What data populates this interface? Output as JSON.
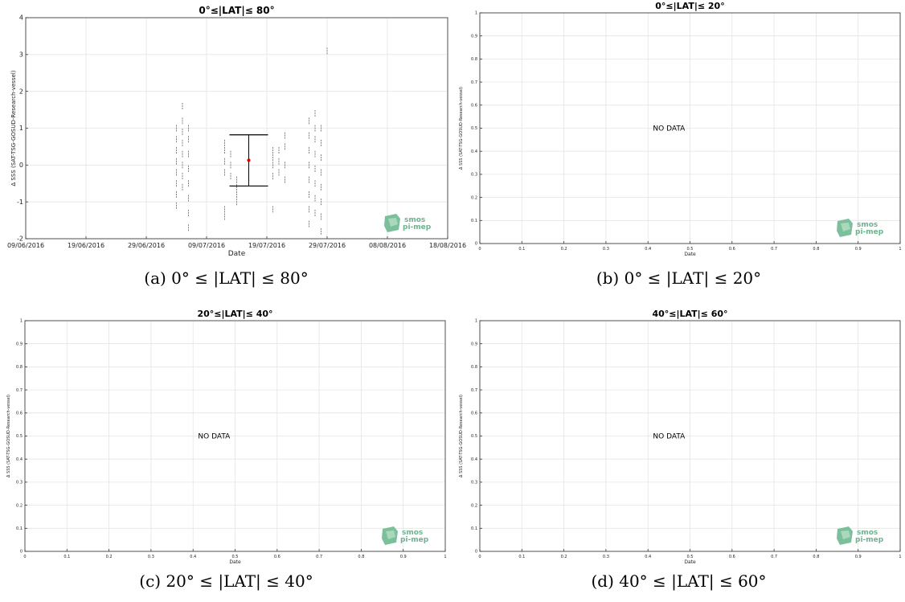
{
  "chart_data": [
    {
      "type": "scatter",
      "title": "0°≤|LAT|≤ 80°",
      "xlabel": "Date",
      "ylabel": "Δ SSS (SAT-TSG-GOSUD-Research-vessel)",
      "x_ticks": [
        "09/06/2016",
        "19/06/2016",
        "29/06/2016",
        "09/07/2016",
        "19/07/2016",
        "29/07/2016",
        "08/08/2016",
        "18/08/2016"
      ],
      "y_ticks": [
        "-2",
        "-1",
        "0",
        "1",
        "2",
        "3",
        "4"
      ],
      "xlim": [
        "09/06/2016",
        "18/08/2016"
      ],
      "ylim": [
        -2,
        4
      ],
      "grid": true,
      "series": [
        {
          "color": "#808080",
          "points": [
            [
              "04/07/2016",
              -1.1
            ],
            [
              "04/07/2016",
              -0.8
            ],
            [
              "04/07/2016",
              -0.5
            ],
            [
              "04/07/2016",
              -0.2
            ],
            [
              "04/07/2016",
              0.1
            ],
            [
              "04/07/2016",
              0.4
            ],
            [
              "04/07/2016",
              0.7
            ],
            [
              "04/07/2016",
              1.0
            ],
            [
              "05/07/2016",
              -0.6
            ],
            [
              "05/07/2016",
              -0.3
            ],
            [
              "05/07/2016",
              0.0
            ],
            [
              "05/07/2016",
              0.3
            ],
            [
              "05/07/2016",
              0.6
            ],
            [
              "05/07/2016",
              0.9
            ],
            [
              "05/07/2016",
              1.2
            ],
            [
              "05/07/2016",
              1.6
            ],
            [
              "06/07/2016",
              -1.7
            ],
            [
              "06/07/2016",
              -1.3
            ],
            [
              "06/07/2016",
              -0.9
            ],
            [
              "06/07/2016",
              -0.5
            ],
            [
              "06/07/2016",
              -0.1
            ],
            [
              "06/07/2016",
              0.3
            ],
            [
              "06/07/2016",
              0.7
            ],
            [
              "06/07/2016",
              1.0
            ],
            [
              "12/07/2016",
              -1.4
            ],
            [
              "12/07/2016",
              -1.2
            ],
            [
              "12/07/2016",
              -0.2
            ],
            [
              "12/07/2016",
              0.1
            ],
            [
              "12/07/2016",
              0.4
            ],
            [
              "12/07/2016",
              0.6
            ],
            [
              "13/07/2016",
              -0.3
            ],
            [
              "13/07/2016",
              0.0
            ],
            [
              "13/07/2016",
              0.3
            ],
            [
              "14/07/2016",
              -1.0
            ],
            [
              "14/07/2016",
              -0.8
            ],
            [
              "14/07/2016",
              -0.6
            ],
            [
              "14/07/2016",
              -0.4
            ],
            [
              "20/07/2016",
              -1.2
            ],
            [
              "20/07/2016",
              -0.3
            ],
            [
              "20/07/2016",
              0.0
            ],
            [
              "20/07/2016",
              0.2
            ],
            [
              "20/07/2016",
              0.4
            ],
            [
              "21/07/2016",
              -0.2
            ],
            [
              "21/07/2016",
              0.1
            ],
            [
              "21/07/2016",
              0.4
            ],
            [
              "22/07/2016",
              -0.4
            ],
            [
              "22/07/2016",
              0.0
            ],
            [
              "22/07/2016",
              0.5
            ],
            [
              "22/07/2016",
              0.8
            ],
            [
              "26/07/2016",
              -1.6
            ],
            [
              "26/07/2016",
              -1.2
            ],
            [
              "26/07/2016",
              -0.8
            ],
            [
              "26/07/2016",
              -0.4
            ],
            [
              "26/07/2016",
              0.0
            ],
            [
              "26/07/2016",
              0.4
            ],
            [
              "26/07/2016",
              0.8
            ],
            [
              "26/07/2016",
              1.2
            ],
            [
              "27/07/2016",
              -1.3
            ],
            [
              "27/07/2016",
              -0.9
            ],
            [
              "27/07/2016",
              -0.5
            ],
            [
              "27/07/2016",
              -0.1
            ],
            [
              "27/07/2016",
              0.3
            ],
            [
              "27/07/2016",
              0.7
            ],
            [
              "27/07/2016",
              1.0
            ],
            [
              "27/07/2016",
              1.4
            ],
            [
              "28/07/2016",
              -1.8
            ],
            [
              "28/07/2016",
              -1.4
            ],
            [
              "28/07/2016",
              -1.0
            ],
            [
              "28/07/2016",
              -0.6
            ],
            [
              "28/07/2016",
              -0.2
            ],
            [
              "28/07/2016",
              0.2
            ],
            [
              "28/07/2016",
              0.6
            ],
            [
              "28/07/2016",
              1.0
            ],
            [
              "29/07/2016",
              3.1
            ]
          ]
        }
      ],
      "summary": {
        "x": "16/07/2016",
        "mean": 0.13,
        "lower": -0.57,
        "upper": 0.82,
        "marker_color": "#cc0000"
      },
      "logo": [
        "smos",
        "pi-mep"
      ],
      "caption": "(a) 0° ≤ |LAT| ≤ 80°"
    },
    {
      "type": "scatter",
      "title": "0°≤|LAT|≤ 20°",
      "xlabel": "Date",
      "ylabel": "Δ SSS (SAT-TSG-GOSUD-Research-vessel)",
      "x_ticks": [
        "0",
        "0.1",
        "0.2",
        "0.3",
        "0.4",
        "0.5",
        "0.6",
        "0.7",
        "0.8",
        "0.9",
        "1"
      ],
      "y_ticks": [
        "0",
        "0.1",
        "0.2",
        "0.3",
        "0.4",
        "0.5",
        "0.6",
        "0.7",
        "0.8",
        "0.9",
        "1"
      ],
      "xlim": [
        0,
        1
      ],
      "ylim": [
        0,
        1
      ],
      "grid": true,
      "no_data": "NO DATA",
      "logo": [
        "smos",
        "pi-mep"
      ],
      "caption": "(b) 0° ≤ |LAT| ≤ 20°"
    },
    {
      "type": "scatter",
      "title": "20°≤|LAT|≤ 40°",
      "xlabel": "Date",
      "ylabel": "Δ SSS (SAT-TSG-GOSUD-Research-vessel)",
      "x_ticks": [
        "0",
        "0.1",
        "0.2",
        "0.3",
        "0.4",
        "0.5",
        "0.6",
        "0.7",
        "0.8",
        "0.9",
        "1"
      ],
      "y_ticks": [
        "0",
        "0.1",
        "0.2",
        "0.3",
        "0.4",
        "0.5",
        "0.6",
        "0.7",
        "0.8",
        "0.9",
        "1"
      ],
      "xlim": [
        0,
        1
      ],
      "ylim": [
        0,
        1
      ],
      "grid": true,
      "no_data": "NO DATA",
      "logo": [
        "smos",
        "pi-mep"
      ],
      "caption": "(c) 20° ≤ |LAT| ≤ 40°"
    },
    {
      "type": "scatter",
      "title": "40°≤|LAT|≤ 60°",
      "xlabel": "Date",
      "ylabel": "Δ SSS (SAT-TSG-GOSUD-Research-vessel)",
      "x_ticks": [
        "0",
        "0.1",
        "0.2",
        "0.3",
        "0.4",
        "0.5",
        "0.6",
        "0.7",
        "0.8",
        "0.9",
        "1"
      ],
      "y_ticks": [
        "0",
        "0.1",
        "0.2",
        "0.3",
        "0.4",
        "0.5",
        "0.6",
        "0.7",
        "0.8",
        "0.9",
        "1"
      ],
      "xlim": [
        0,
        1
      ],
      "ylim": [
        0,
        1
      ],
      "grid": true,
      "no_data": "NO DATA",
      "logo": [
        "smos",
        "pi-mep"
      ],
      "caption": "(d) 40° ≤ |LAT| ≤ 60°"
    }
  ]
}
